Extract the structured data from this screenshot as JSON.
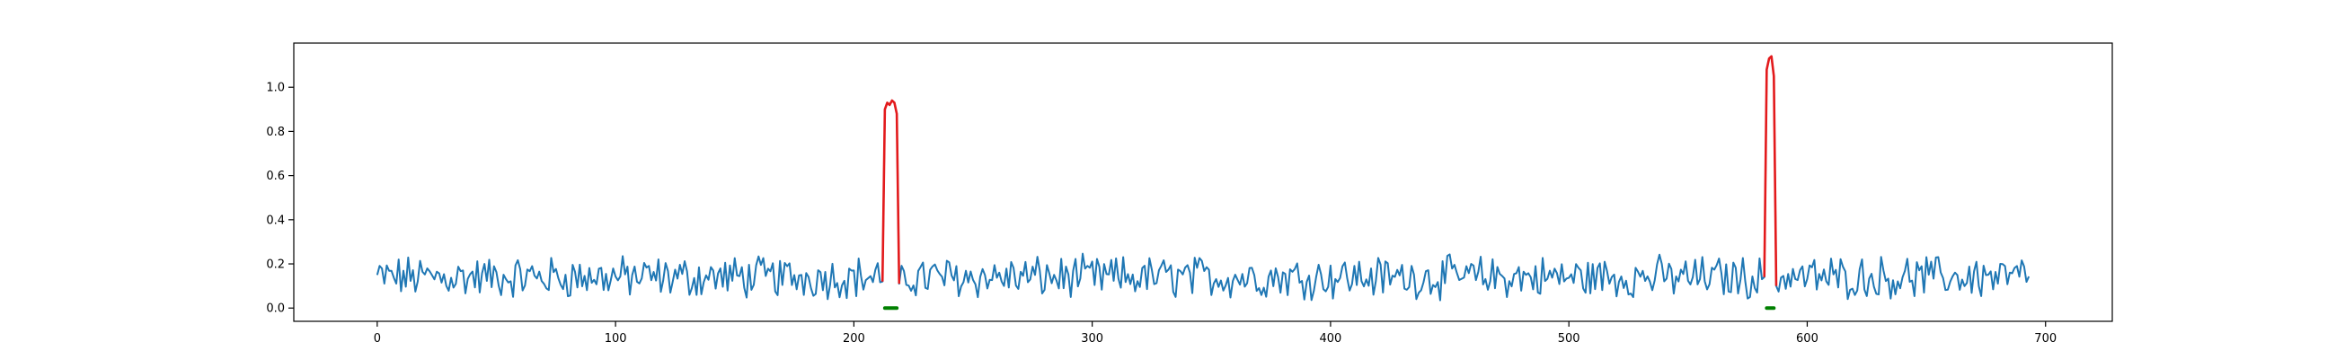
{
  "chart_data": {
    "type": "line",
    "title": "",
    "xlabel": "",
    "ylabel": "",
    "xlim": [
      -35,
      728
    ],
    "ylim": [
      -0.06,
      1.2
    ],
    "x_ticks": [
      0,
      100,
      200,
      300,
      400,
      500,
      600,
      700
    ],
    "x_tick_labels": [
      "0",
      "100",
      "200",
      "300",
      "400",
      "500",
      "600",
      "700"
    ],
    "y_ticks": [
      0.0,
      0.2,
      0.4,
      0.6,
      0.8,
      1.0
    ],
    "y_tick_labels": [
      "0.0",
      "0.2",
      "0.4",
      "0.6",
      "0.8",
      "1.0"
    ],
    "grid": false,
    "series_info": {
      "n_points": 694,
      "baseline_range": [
        0.03,
        0.27
      ],
      "colors": {
        "signal": "#1f77b4",
        "anomaly": "#e31a1c",
        "marker": "#008000"
      }
    },
    "anomalies": [
      {
        "x": [
          212,
          213,
          214,
          215,
          216,
          217,
          218,
          219
        ],
        "y": [
          0.12,
          0.9,
          0.93,
          0.92,
          0.94,
          0.93,
          0.88,
          0.11
        ]
      },
      {
        "x": [
          582,
          583,
          584,
          585,
          586,
          587
        ],
        "y": [
          0.14,
          1.08,
          1.13,
          1.14,
          1.05,
          0.1
        ]
      }
    ],
    "markers": [
      {
        "x_start": 213,
        "x_end": 218,
        "y": 0.0
      },
      {
        "x_start": 583,
        "x_end": 586,
        "y": 0.0
      }
    ]
  }
}
